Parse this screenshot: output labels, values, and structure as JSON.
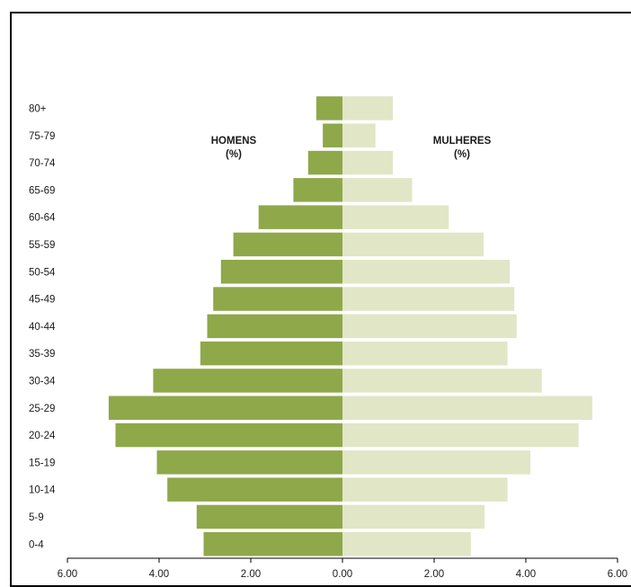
{
  "chart_data": {
    "type": "bar",
    "orientation": "horizontal-population-pyramid",
    "categories": [
      "0-4",
      "5-9",
      "10-14",
      "15-19",
      "20-24",
      "25-29",
      "30-34",
      "35-39",
      "40-44",
      "45-49",
      "50-54",
      "55-59",
      "60-64",
      "65-69",
      "70-74",
      "75-79",
      "80+"
    ],
    "series": [
      {
        "name": "HOMENS",
        "side": "left",
        "color": "#8fa84a",
        "values": [
          3.03,
          3.18,
          3.82,
          4.05,
          4.95,
          5.1,
          4.13,
          3.1,
          2.95,
          2.82,
          2.65,
          2.38,
          1.83,
          1.07,
          0.75,
          0.43,
          0.57
        ]
      },
      {
        "name": "MULHERES",
        "side": "right",
        "color": "#e1e6c7",
        "values": [
          2.8,
          3.1,
          3.6,
          4.1,
          5.15,
          5.45,
          4.35,
          3.6,
          3.8,
          3.75,
          3.65,
          3.08,
          2.32,
          1.52,
          1.1,
          0.72,
          1.1
        ]
      }
    ],
    "labels": {
      "left_title_line1": "HOMENS",
      "left_title_line2": "(%)",
      "right_title_line1": "MULHERES",
      "right_title_line2": "(%)"
    },
    "xlim": [
      -6,
      6
    ],
    "xticks": [
      {
        "value": -6,
        "label": "6.00"
      },
      {
        "value": -4,
        "label": "4.00"
      },
      {
        "value": -2,
        "label": "2.00"
      },
      {
        "value": 0,
        "label": "0.00"
      },
      {
        "value": 2,
        "label": "2.00"
      },
      {
        "value": 4,
        "label": "4.00"
      },
      {
        "value": 6,
        "label": "6.00"
      }
    ],
    "grid": false,
    "legend": "none"
  }
}
